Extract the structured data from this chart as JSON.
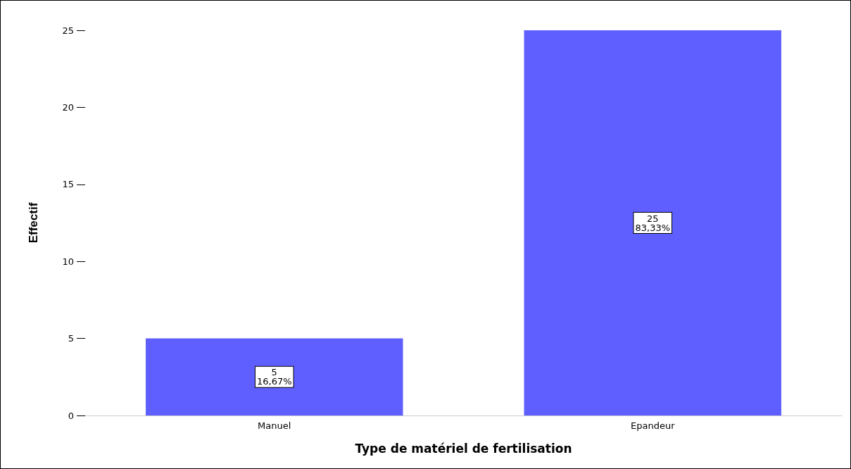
{
  "chart_data": {
    "type": "bar",
    "xlabel": "Type de matériel de fertilisation",
    "ylabel": "Effectif",
    "categories": [
      "Manuel",
      "Epandeur"
    ],
    "values": [
      5,
      25
    ],
    "color": "#5f5fff",
    "value_labels": [
      "5\n16,67%",
      "25\n83,33%"
    ],
    "ylim": [
      0,
      25
    ],
    "yticks": [
      0,
      5,
      10,
      15,
      20,
      25
    ],
    "grid": false
  }
}
